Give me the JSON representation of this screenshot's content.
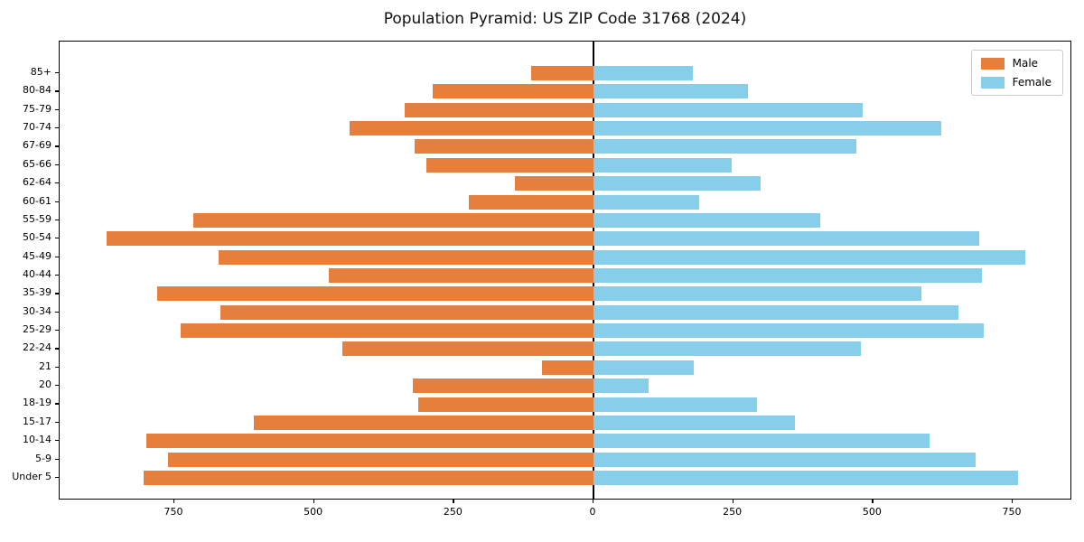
{
  "title": "Population Pyramid: US ZIP Code 31768 (2024)",
  "chart_data": {
    "type": "bar",
    "variant": "population-pyramid",
    "orientation": "horizontal",
    "title": "Population Pyramid: US ZIP Code 31768 (2024)",
    "xlabel": "",
    "ylabel": "",
    "grid": false,
    "legend_position": "upper right",
    "categories_top_to_bottom": [
      "85+",
      "80-84",
      "75-79",
      "70-74",
      "67-69",
      "65-66",
      "62-64",
      "60-61",
      "55-59",
      "50-54",
      "45-49",
      "40-44",
      "35-39",
      "30-34",
      "25-29",
      "22-24",
      "21",
      "20",
      "18-19",
      "15-17",
      "10-14",
      "5-9",
      "Under 5"
    ],
    "series": [
      {
        "name": "Male",
        "side": "left",
        "color": "#e67e3c",
        "values": [
          112,
          288,
          338,
          436,
          320,
          299,
          141,
          223,
          716,
          871,
          671,
          474,
          781,
          667,
          739,
          449,
          92,
          323,
          314,
          608,
          800,
          761,
          805
        ]
      },
      {
        "name": "Female",
        "side": "right",
        "color": "#87ceeb",
        "values": [
          178,
          276,
          482,
          622,
          470,
          247,
          299,
          189,
          406,
          690,
          772,
          695,
          587,
          653,
          698,
          478,
          179,
          98,
          293,
          360,
          601,
          684,
          760
        ]
      }
    ],
    "x_tick_labels": [
      "750",
      "500",
      "250",
      "0",
      "250",
      "500",
      "750"
    ],
    "x_tick_values": [
      -750,
      -500,
      -250,
      0,
      250,
      500,
      750
    ],
    "xlim": [
      -955,
      860
    ],
    "axis_color": "#000000",
    "background_color": "#ffffff"
  }
}
